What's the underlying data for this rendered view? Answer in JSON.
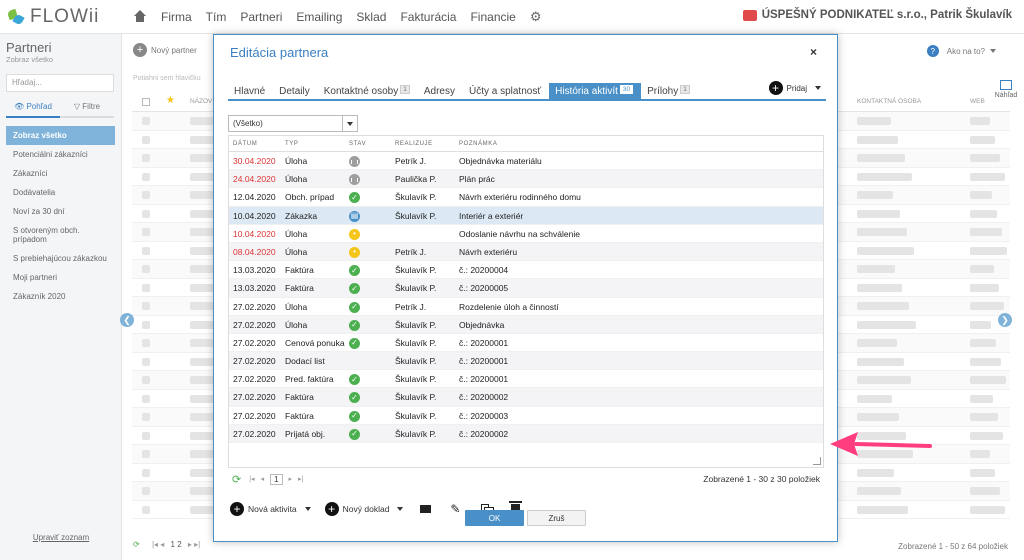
{
  "app": {
    "logo": "FLOWii"
  },
  "nav": [
    "Firma",
    "Tím",
    "Partneri",
    "Emailing",
    "Sklad",
    "Fakturácia",
    "Financie"
  ],
  "company": "ÚSPEŠNÝ PODNIKATEĽ s.r.o., Patrik Škulavík",
  "sidebar": {
    "title": "Partneri",
    "subtitle": "Zobraz všetko",
    "search_placeholder": "Hľadaj...",
    "tab_view": "Pohľad",
    "tab_filter": "Filtre",
    "items": [
      "Zobraz všetko",
      "Potenciálni zákazníci",
      "Zákazníci",
      "Dodávatelia",
      "Noví za 30 dní",
      "S otvoreným obch. prípadom",
      "S prebiehajúcou zákazkou",
      "Moji partneri",
      "Zákazník 2020"
    ],
    "footer_link": "Upraviť zoznam"
  },
  "background": {
    "new_partner": "Nový partner",
    "help": "Ako na to?",
    "preview": "Náhľad",
    "hint": "Potiahni sem hlavičku",
    "col_name": "NÁZOV",
    "col_contact": "KONTAKTNÁ OSOBA",
    "col_web": "WEB",
    "pager": "1 2",
    "count": "Zobrazené 1 - 50 z 64 položiek"
  },
  "modal": {
    "title": "Editácia partnera",
    "tabs": [
      {
        "label": "Hlavné",
        "count": ""
      },
      {
        "label": "Detaily",
        "count": ""
      },
      {
        "label": "Kontaktné osoby",
        "count": "1"
      },
      {
        "label": "Adresy",
        "count": ""
      },
      {
        "label": "Účty a splatnosť",
        "count": ""
      },
      {
        "label": "História aktivít",
        "count": "30"
      },
      {
        "label": "Prílohy",
        "count": "1"
      }
    ],
    "add_button": "Pridaj",
    "filter_value": "(Všetko)",
    "columns": [
      "DÁTUM",
      "TYP",
      "STAV",
      "REALIZUJE",
      "POZNÁMKA"
    ],
    "rows": [
      {
        "date": "30.04.2020",
        "type": "Úloha",
        "status": "pause",
        "owner": "Petrík J.",
        "note": "Objednávka materiálu",
        "overdue": true
      },
      {
        "date": "24.04.2020",
        "type": "Úloha",
        "status": "pause",
        "owner": "Paulička P.",
        "note": "Plán prác",
        "overdue": true
      },
      {
        "date": "12.04.2020",
        "type": "Obch. prípad",
        "status": "done",
        "owner": "Škulavík P.",
        "note": "Návrh exteriéru rodinného domu",
        "overdue": false
      },
      {
        "date": "10.04.2020",
        "type": "Zákazka",
        "status": "blue",
        "owner": "Škulavík P.",
        "note": "Interiér a exteriér",
        "overdue": false
      },
      {
        "date": "10.04.2020",
        "type": "Úloha",
        "status": "prog",
        "owner": "",
        "note": "Odoslanie návrhu na schválenie",
        "overdue": true
      },
      {
        "date": "08.04.2020",
        "type": "Úloha",
        "status": "prog",
        "owner": "Petrík J.",
        "note": "Návrh exteriéru",
        "overdue": true
      },
      {
        "date": "13.03.2020",
        "type": "Faktúra",
        "status": "done",
        "owner": "Škulavík P.",
        "note": "č.: 20200004",
        "overdue": false
      },
      {
        "date": "13.03.2020",
        "type": "Faktúra",
        "status": "done",
        "owner": "Škulavík P.",
        "note": "č.: 20200005",
        "overdue": false
      },
      {
        "date": "27.02.2020",
        "type": "Úloha",
        "status": "done",
        "owner": "Petrík J.",
        "note": "Rozdelenie úloh a činností",
        "overdue": false
      },
      {
        "date": "27.02.2020",
        "type": "Úloha",
        "status": "done",
        "owner": "Škulavík P.",
        "note": "Objednávka",
        "overdue": false
      },
      {
        "date": "27.02.2020",
        "type": "Cenová ponuka",
        "status": "done",
        "owner": "Škulavík P.",
        "note": "č.: 20200001",
        "overdue": false
      },
      {
        "date": "27.02.2020",
        "type": "Dodací list",
        "status": "",
        "owner": "Škulavík P.",
        "note": "č.: 20200001",
        "overdue": false
      },
      {
        "date": "27.02.2020",
        "type": "Pred. faktúra",
        "status": "done",
        "owner": "Škulavík P.",
        "note": "č.: 20200001",
        "overdue": false
      },
      {
        "date": "27.02.2020",
        "type": "Faktúra",
        "status": "done",
        "owner": "Škulavík P.",
        "note": "č.: 20200002",
        "overdue": false
      },
      {
        "date": "27.02.2020",
        "type": "Faktúra",
        "status": "done",
        "owner": "Škulavík P.",
        "note": "č.: 20200003",
        "overdue": false
      },
      {
        "date": "27.02.2020",
        "type": "Prijatá obj.",
        "status": "done",
        "owner": "Škulavík P.",
        "note": "č.: 20200002",
        "overdue": false
      }
    ],
    "pager_current": "1",
    "count": "Zobrazené 1 - 30 z 30 položiek",
    "new_activity": "Nová aktivita",
    "new_document": "Nový doklad",
    "ok": "OK",
    "cancel": "Zruš"
  },
  "colors": {
    "accent": "#4a90c8",
    "overdue": "#dd3333",
    "done": "#4caf50",
    "progress": "#f5c518",
    "annotation": "#ff3d7f"
  }
}
